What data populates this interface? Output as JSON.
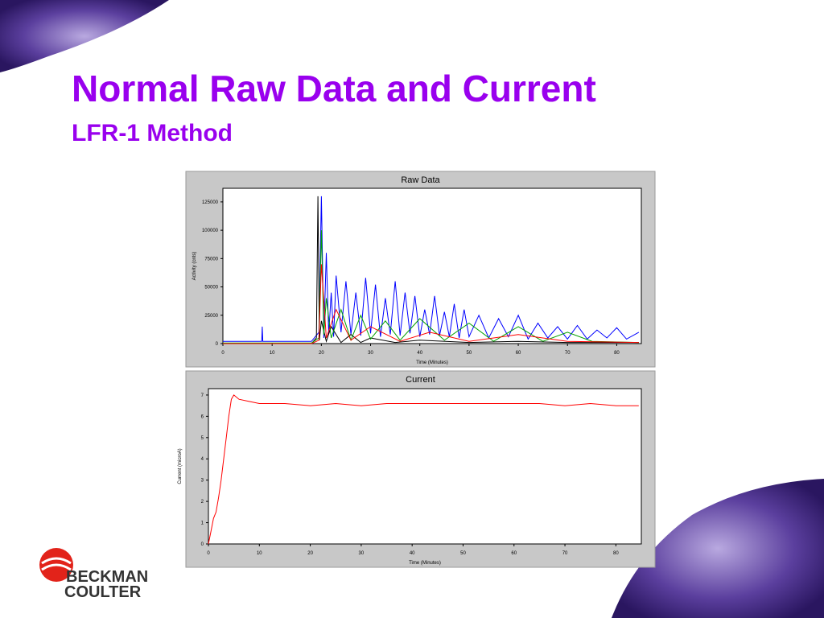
{
  "slide": {
    "title": "Normal Raw Data and Current",
    "subtitle": "LFR-1 Method"
  },
  "logo": {
    "line1": "BECKMAN",
    "line2": "COULTER"
  },
  "chart_data": [
    {
      "type": "line",
      "title": "Raw Data",
      "x_label": "Time (Minutes)",
      "y_label": "Activity (cnts)",
      "xlim": [
        0,
        85
      ],
      "xticks": [
        0,
        10,
        20,
        30,
        40,
        50,
        60,
        70,
        80
      ],
      "ylim": [
        0,
        137000
      ],
      "yticks": [
        0,
        25000,
        50000,
        75000,
        100000,
        125000
      ],
      "series": [
        {
          "color": "#0000ff",
          "x": [
            0,
            7.9,
            8,
            8.1,
            18,
            19.5,
            20,
            20.5,
            21,
            21.5,
            22,
            22.5,
            23,
            24,
            25,
            26,
            27,
            28,
            29,
            30,
            31,
            32,
            33,
            34,
            35,
            36,
            37,
            38,
            39,
            40,
            41,
            42,
            43,
            44,
            45,
            46,
            47,
            48,
            49,
            50,
            52,
            54,
            56,
            58,
            60,
            62,
            64,
            66,
            68,
            70,
            72,
            74,
            76,
            78,
            80,
            82,
            84.5
          ],
          "values": [
            2000,
            2000,
            15000,
            2000,
            2000,
            10000,
            130000,
            5000,
            80000,
            8000,
            45000,
            6000,
            60000,
            10000,
            55000,
            8000,
            45000,
            7000,
            58000,
            9000,
            52000,
            6000,
            40000,
            8000,
            55000,
            7000,
            45000,
            9000,
            42000,
            6000,
            30000,
            8000,
            42000,
            7000,
            28000,
            6000,
            35000,
            5000,
            30000,
            6000,
            25000,
            5000,
            22000,
            6000,
            25000,
            4000,
            18000,
            5000,
            15000,
            4000,
            16000,
            4000,
            12000,
            5000,
            14000,
            4000,
            10000
          ]
        },
        {
          "color": "#000000",
          "x": [
            0,
            18,
            19,
            19.3,
            19.6,
            20,
            21,
            22,
            24,
            26,
            28,
            30,
            35,
            40,
            50,
            60,
            70,
            84.5
          ],
          "values": [
            0,
            0,
            5000,
            130000,
            3000,
            20000,
            2000,
            15000,
            1000,
            8000,
            1000,
            5000,
            1000,
            3000,
            1000,
            2000,
            1000,
            1000
          ]
        },
        {
          "color": "#00a000",
          "x": [
            0,
            18,
            19.5,
            20,
            20.5,
            21,
            22,
            24,
            26,
            28,
            30,
            33,
            36,
            40,
            45,
            50,
            55,
            60,
            65,
            70,
            75,
            84.5
          ],
          "values": [
            500,
            500,
            5000,
            100000,
            8000,
            40000,
            5000,
            30000,
            3000,
            25000,
            4000,
            20000,
            3000,
            22000,
            3000,
            18000,
            2000,
            15000,
            2000,
            10000,
            2000,
            1000
          ]
        },
        {
          "color": "#ff0000",
          "x": [
            0,
            18,
            19.5,
            20,
            21,
            23,
            26,
            30,
            36,
            42,
            50,
            60,
            70,
            84.5
          ],
          "values": [
            0,
            0,
            3000,
            70000,
            5000,
            30000,
            3000,
            15000,
            2000,
            10000,
            2000,
            8000,
            2000,
            1000
          ]
        }
      ]
    },
    {
      "type": "line",
      "title": "Current",
      "x_label": "Time (Minutes)",
      "y_label": "Current (microA)",
      "xlim": [
        0,
        85
      ],
      "xticks": [
        0,
        10,
        20,
        30,
        40,
        50,
        60,
        70,
        80
      ],
      "ylim": [
        0,
        7.3
      ],
      "yticks": [
        0,
        1,
        2,
        3,
        4,
        5,
        6,
        7
      ],
      "series": [
        {
          "color": "#ff0000",
          "x": [
            0,
            0.5,
            1,
            1.5,
            2,
            2.5,
            3,
            3.5,
            4,
            4.5,
            5,
            6,
            8,
            10,
            15,
            20,
            25,
            30,
            35,
            40,
            45,
            50,
            55,
            60,
            65,
            70,
            75,
            80,
            84.5
          ],
          "values": [
            0,
            0.6,
            1.2,
            1.5,
            2.2,
            3.0,
            4.0,
            5.0,
            6.0,
            6.8,
            7.0,
            6.8,
            6.7,
            6.6,
            6.6,
            6.5,
            6.6,
            6.5,
            6.6,
            6.6,
            6.6,
            6.6,
            6.6,
            6.6,
            6.6,
            6.5,
            6.6,
            6.5,
            6.5
          ]
        }
      ]
    }
  ]
}
